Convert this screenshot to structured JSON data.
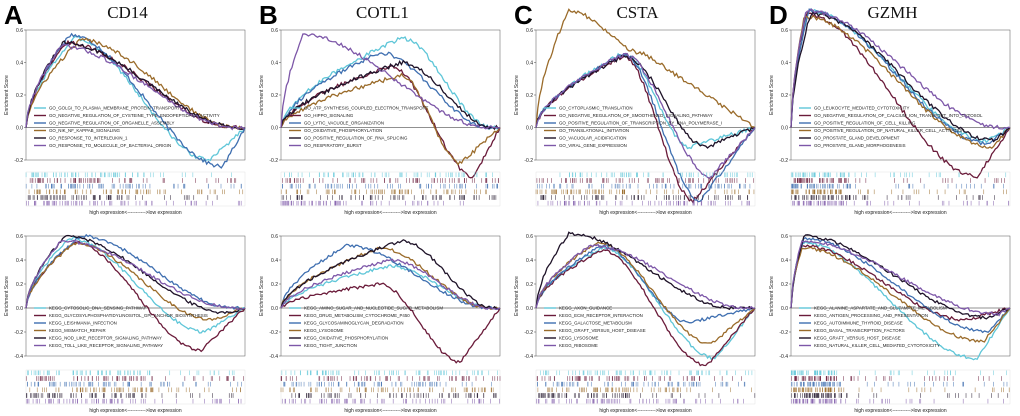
{
  "figure": {
    "panels": [
      {
        "letter": "A",
        "gene": "CD14"
      },
      {
        "letter": "B",
        "gene": "COTL1"
      },
      {
        "letter": "C",
        "gene": "CSTA"
      },
      {
        "letter": "D",
        "gene": "GZMH"
      }
    ],
    "y_axis_label": "Enrichment Score",
    "x_axis_label": "high expression<----------->low expression",
    "series_colors": [
      "#5fc6d8",
      "#6a1b3a",
      "#3f6fb0",
      "#9a6b2a",
      "#1e1228",
      "#7d57a8"
    ]
  },
  "chart_data": [
    {
      "id": "A-go",
      "type": "line",
      "panel": "A",
      "ylim": [
        -0.2,
        0.6
      ],
      "yticks": [
        0.6,
        0.4,
        0.2,
        0.0,
        -0.2
      ],
      "series": [
        {
          "name": "GO_GOLGI_TO_PLASMA_MEMBRANE_PROTEIN_TRANSPORT",
          "peak": 0.55,
          "peak_pos": 0.22,
          "tail": -0.2,
          "tail_pos": 0.84
        },
        {
          "name": "GO_NEGATIVE_REGULATION_OF_CYSTEINE_TYPE_ENDOPEPTIDASE_ACTIVITY",
          "peak": 0.52,
          "peak_pos": 0.18,
          "tail": 0.0,
          "tail_pos": 0.95
        },
        {
          "name": "GO_NEGATIVE_REGULATION_OF_ORGANELLE_ASSEMBLY",
          "peak": 0.57,
          "peak_pos": 0.2,
          "tail": -0.24,
          "tail_pos": 0.9
        },
        {
          "name": "GO_NIK_NF_KAPPAB_SIGNALING",
          "peak": 0.54,
          "peak_pos": 0.25,
          "tail": 0.0,
          "tail_pos": 0.96
        },
        {
          "name": "GO_RESPONSE_TO_INTERLEUKIN_1",
          "peak": 0.52,
          "peak_pos": 0.17,
          "tail": 0.0,
          "tail_pos": 0.97
        },
        {
          "name": "GO_RESPONSE_TO_MOLECULE_OF_BACTERIAL_ORIGIN",
          "peak": 0.5,
          "peak_pos": 0.16,
          "tail": 0.0,
          "tail_pos": 0.96
        }
      ]
    },
    {
      "id": "B-go",
      "type": "line",
      "panel": "B",
      "ylim": [
        -0.2,
        0.6
      ],
      "yticks": [
        0.6,
        0.4,
        0.2,
        0.0,
        -0.2
      ],
      "series": [
        {
          "name": "GO_ATP_SYNTHESIS_COUPLED_ELECTRON_TRANSPORT",
          "peak": 0.55,
          "peak_pos": 0.55,
          "tail": 0.0,
          "tail_pos": 0.96
        },
        {
          "name": "GO_HIPPO_SIGNALING",
          "peak": 0.38,
          "peak_pos": 0.5,
          "tail": -0.3,
          "tail_pos": 0.88
        },
        {
          "name": "GO_LYTIC_VACUOLE_ORGANIZATION",
          "peak": 0.46,
          "peak_pos": 0.45,
          "tail": 0.0,
          "tail_pos": 0.95
        },
        {
          "name": "GO_OXIDATIVE_PHOSPHORYLATION",
          "peak": 0.32,
          "peak_pos": 0.55,
          "tail": -0.22,
          "tail_pos": 0.82
        },
        {
          "name": "GO_POSITIVE_REGULATION_OF_RNA_SPLICING",
          "peak": 0.4,
          "peak_pos": 0.55,
          "tail": 0.0,
          "tail_pos": 0.97
        },
        {
          "name": "GO_RESPIRATORY_BURST",
          "peak": 0.57,
          "peak_pos": 0.1,
          "tail": 0.0,
          "tail_pos": 0.96
        }
      ]
    },
    {
      "id": "C-go",
      "type": "line",
      "panel": "C",
      "ylim": [
        -0.2,
        0.6
      ],
      "yticks": [
        0.6,
        0.4,
        0.2,
        0.0,
        -0.2
      ],
      "series": [
        {
          "name": "GO_CYTOPLASMIC_TRANSLATION",
          "peak": 0.46,
          "peak_pos": 0.4,
          "tail": -0.12,
          "tail_pos": 0.7
        },
        {
          "name": "GO_NEGATIVE_REGULATION_OF_SMOOTHENED_SIGNALING_PATHWAY",
          "peak": 0.44,
          "peak_pos": 0.4,
          "tail": -0.45,
          "tail_pos": 0.72
        },
        {
          "name": "GO_POSITIVE_REGULATION_OF_TRANSCRIPTION_BY_RNA_POLYMERASE_I",
          "peak": 0.45,
          "peak_pos": 0.4,
          "tail": -0.45,
          "tail_pos": 0.75
        },
        {
          "name": "GO_TRANSLATIONAL_INITIATION",
          "peak": 0.72,
          "peak_pos": 0.15,
          "tail": 0.45,
          "tail_pos": 0.5
        },
        {
          "name": "GO_VACUOLAR_ACIDIFICATION",
          "peak": 0.44,
          "peak_pos": 0.4,
          "tail": -0.12,
          "tail_pos": 0.78
        },
        {
          "name": "GO_VIRAL_GENE_EXPRESSION",
          "peak": 0.45,
          "peak_pos": 0.4,
          "tail": -0.3,
          "tail_pos": 0.8
        }
      ]
    },
    {
      "id": "D-go",
      "type": "line",
      "panel": "D",
      "ylim": [
        -0.2,
        0.6
      ],
      "yticks": [
        0.6,
        0.4,
        0.2,
        0.0,
        -0.2
      ],
      "series": [
        {
          "name": "GO_LEUKOCYTE_MEDIATED_CYTOTOXICITY",
          "peak": 0.72,
          "peak_pos": 0.08,
          "tail": -0.08,
          "tail_pos": 0.9
        },
        {
          "name": "GO_NEGATIVE_REGULATION_OF_CALCIUM_ION_TRANSPORT_INTO_CYTOSOL",
          "peak": 0.7,
          "peak_pos": 0.07,
          "tail": -0.3,
          "tail_pos": 0.85
        },
        {
          "name": "GO_POSITIVE_REGULATION_OF_CELL_KILLING",
          "peak": 0.72,
          "peak_pos": 0.08,
          "tail": -0.1,
          "tail_pos": 0.9
        },
        {
          "name": "GO_POSITIVE_REGULATION_OF_NATURAL_KILLER_CELL_ACTIVATION",
          "peak": 0.68,
          "peak_pos": 0.06,
          "tail": -0.12,
          "tail_pos": 0.92
        },
        {
          "name": "GO_PROSTATE_GLAND_DEVELOPMENT",
          "peak": 0.7,
          "peak_pos": 0.09,
          "tail": -0.08,
          "tail_pos": 0.93
        },
        {
          "name": "GO_PROSTATE_GLAND_MORPHOGENESIS",
          "peak": 0.72,
          "peak_pos": 0.07,
          "tail": 0.0,
          "tail_pos": 0.96
        }
      ]
    },
    {
      "id": "A-kegg",
      "type": "line",
      "panel": "A",
      "ylim": [
        -0.4,
        0.6
      ],
      "yticks": [
        0.6,
        0.4,
        0.2,
        0.0,
        -0.2,
        -0.4
      ],
      "series": [
        {
          "name": "KEGG_CYTOSOLIC_DNA_SENSING_PATHWAY",
          "peak": 0.58,
          "peak_pos": 0.2,
          "tail": -0.2,
          "tail_pos": 0.82
        },
        {
          "name": "KEGG_GLYCOSYLPHOSPHATIDYLINOSITOL_GPI_ANCHOR_BIOSYNTHESIS",
          "peak": 0.55,
          "peak_pos": 0.22,
          "tail": -0.35,
          "tail_pos": 0.8
        },
        {
          "name": "KEGG_LEISHMANIA_INFECTION",
          "peak": 0.6,
          "peak_pos": 0.25,
          "tail": 0.0,
          "tail_pos": 0.95
        },
        {
          "name": "KEGG_MISMATCH_REPAIR",
          "peak": 0.54,
          "peak_pos": 0.22,
          "tail": -0.1,
          "tail_pos": 0.85
        },
        {
          "name": "KEGG_NOD_LIKE_RECEPTOR_SIGNALING_PATHWAY",
          "peak": 0.6,
          "peak_pos": 0.18,
          "tail": -0.04,
          "tail_pos": 0.92
        },
        {
          "name": "KEGG_TOLL_LIKE_RECEPTOR_SIGNALING_PATHWAY",
          "peak": 0.56,
          "peak_pos": 0.16,
          "tail": 0.0,
          "tail_pos": 0.96
        }
      ]
    },
    {
      "id": "B-kegg",
      "type": "line",
      "panel": "B",
      "ylim": [
        -0.4,
        0.6
      ],
      "yticks": [
        0.6,
        0.4,
        0.2,
        0.0,
        -0.2,
        -0.4
      ],
      "series": [
        {
          "name": "KEGG_AMINO_SUGAR_AND_NUCLEOTIDE_SUGAR_METABOLISM",
          "peak": 0.35,
          "peak_pos": 0.5,
          "tail": 0.0,
          "tail_pos": 0.96
        },
        {
          "name": "KEGG_DRUG_METABOLISM_CYTOCHROME_P450",
          "peak": 0.2,
          "peak_pos": 0.45,
          "tail": -0.45,
          "tail_pos": 0.82
        },
        {
          "name": "KEGG_GLYCOSAMINOGLYCAN_DEGRADATION",
          "peak": 0.52,
          "peak_pos": 0.3,
          "tail": 0.0,
          "tail_pos": 0.96
        },
        {
          "name": "KEGG_LYSOSOME",
          "peak": 0.5,
          "peak_pos": 0.45,
          "tail": 0.0,
          "tail_pos": 0.95
        },
        {
          "name": "KEGG_OXIDATIVE_PHOSPHORYLATION",
          "peak": 0.56,
          "peak_pos": 0.55,
          "tail": 0.0,
          "tail_pos": 0.97
        },
        {
          "name": "KEGG_TIGHT_JUNCTION",
          "peak": 0.4,
          "peak_pos": 0.5,
          "tail": 0.0,
          "tail_pos": 0.96
        }
      ]
    },
    {
      "id": "C-kegg",
      "type": "line",
      "panel": "C",
      "ylim": [
        -0.4,
        0.6
      ],
      "yticks": [
        0.6,
        0.4,
        0.2,
        0.0,
        -0.2,
        -0.4
      ],
      "series": [
        {
          "name": "KEGG_AXON_GUIDANCE",
          "peak": 0.5,
          "peak_pos": 0.3,
          "tail": -0.42,
          "tail_pos": 0.82
        },
        {
          "name": "KEGG_ECM_RECEPTOR_INTERACTION",
          "peak": 0.48,
          "peak_pos": 0.3,
          "tail": -0.48,
          "tail_pos": 0.78
        },
        {
          "name": "KEGG_GALACTOSE_METABOLISM",
          "peak": 0.52,
          "peak_pos": 0.3,
          "tail": -0.12,
          "tail_pos": 0.7
        },
        {
          "name": "KEGG_GRAFT_VERSUS_HOST_DISEASE",
          "peak": 0.55,
          "peak_pos": 0.28,
          "tail": -0.3,
          "tail_pos": 0.8
        },
        {
          "name": "KEGG_LYSOSOME",
          "peak": 0.62,
          "peak_pos": 0.15,
          "tail": 0.0,
          "tail_pos": 0.9
        },
        {
          "name": "KEGG_RIBOSOME",
          "peak": 0.52,
          "peak_pos": 0.25,
          "tail": 0.0,
          "tail_pos": 0.96
        }
      ]
    },
    {
      "id": "D-kegg",
      "type": "line",
      "panel": "D",
      "ylim": [
        -0.4,
        0.6
      ],
      "yticks": [
        0.6,
        0.4,
        0.2,
        0.0,
        -0.2,
        -0.4
      ],
      "series": [
        {
          "name": "KEGG_ALANINE_ASPARTATE_AND_GLUTAMATE_METABOLISM",
          "peak": 0.55,
          "peak_pos": 0.05,
          "tail": -0.42,
          "tail_pos": 0.85
        },
        {
          "name": "KEGG_ANTIGEN_PROCESSING_AND_PRESENTATION",
          "peak": 0.52,
          "peak_pos": 0.05,
          "tail": -0.1,
          "tail_pos": 0.8
        },
        {
          "name": "KEGG_AUTOIMMUNE_THYROID_DISEASE",
          "peak": 0.58,
          "peak_pos": 0.06,
          "tail": -0.2,
          "tail_pos": 0.9
        },
        {
          "name": "KEGG_BASAL_TRANSCRIPTION_FACTORS",
          "peak": 0.5,
          "peak_pos": 0.05,
          "tail": -0.28,
          "tail_pos": 0.88
        },
        {
          "name": "KEGG_GRAFT_VERSUS_HOST_DISEASE",
          "peak": 0.6,
          "peak_pos": 0.06,
          "tail": -0.08,
          "tail_pos": 0.9
        },
        {
          "name": "KEGG_NATURAL_KILLER_CELL_MEDIATED_CYTOTOXICITY",
          "peak": 0.56,
          "peak_pos": 0.05,
          "tail": -0.05,
          "tail_pos": 0.95
        }
      ]
    }
  ]
}
